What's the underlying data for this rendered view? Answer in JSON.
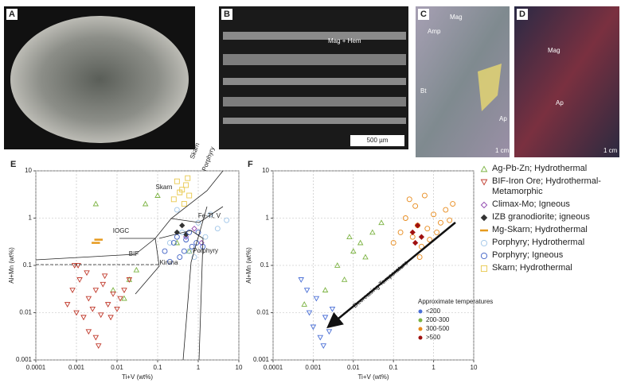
{
  "panels": [
    {
      "label": "A"
    },
    {
      "label": "B",
      "annotations": [
        "Mag + Hem",
        "500 µm"
      ]
    },
    {
      "label": "C",
      "annotations": [
        "Mag",
        "Amp",
        "Bt",
        "Ap",
        "1 cm"
      ]
    },
    {
      "label": "D",
      "annotations": [
        "Mag",
        "Ap",
        "1 cm"
      ]
    }
  ],
  "chart_data": [
    {
      "type": "scatter",
      "panel_label": "E",
      "xlabel": "Ti+V (wt%)",
      "ylabel": "Al+Mn (wt%)",
      "log": true,
      "grid": true,
      "xlim": [
        0.0001,
        10
      ],
      "ylim": [
        0.001,
        10
      ],
      "xticks": [
        0.0001,
        0.001,
        0.01,
        0.1,
        1,
        10
      ],
      "yticks": [
        0.001,
        0.01,
        0.1,
        1,
        10
      ],
      "annotations": [
        "Skarn",
        "Porphyry",
        "Fe-Ti, V",
        "IOGC",
        "BIF",
        "Kiruna",
        "Porphyry",
        "Skarn"
      ],
      "series": [
        {
          "name": "Ag-Pb-Zn; Hydrothermal",
          "marker": "triangle-up",
          "color": "#7cb342",
          "filled": false,
          "x": [
            0.003,
            0.05,
            0.015,
            0.02,
            0.3,
            0.1,
            0.03,
            0.008,
            0.6
          ],
          "values": [
            2,
            2,
            0.02,
            0.05,
            0.3,
            3,
            0.08,
            0.03,
            0.2
          ]
        },
        {
          "name": "BIF-Iron Ore; Hydrothermal-Metamorphic",
          "marker": "triangle-down",
          "color": "#c0392b",
          "filled": false,
          "x": [
            0.0006,
            0.0008,
            0.001,
            0.0012,
            0.0015,
            0.002,
            0.002,
            0.0025,
            0.003,
            0.003,
            0.004,
            0.005,
            0.006,
            0.008,
            0.01,
            0.012,
            0.0009,
            0.0018,
            0.0035,
            0.0045,
            0.007,
            0.015,
            0.02,
            0.0011
          ],
          "values": [
            0.015,
            0.03,
            0.01,
            0.05,
            0.008,
            0.02,
            0.004,
            0.012,
            0.03,
            0.003,
            0.009,
            0.06,
            0.015,
            0.025,
            0.012,
            0.02,
            0.1,
            0.07,
            0.002,
            0.04,
            0.008,
            0.03,
            0.05,
            0.1
          ]
        },
        {
          "name": "Climax-Mo; Igneous",
          "marker": "diamond",
          "color": "#8e44ad",
          "filled": false,
          "x": [
            0.5,
            0.8,
            1.2
          ],
          "values": [
            0.4,
            0.6,
            0.3
          ]
        },
        {
          "name": "IZB granodiorite; igneous",
          "marker": "diamond",
          "color": "#333333",
          "filled": true,
          "x": [
            0.3,
            0.4,
            0.5
          ],
          "values": [
            0.5,
            0.7,
            0.45
          ]
        },
        {
          "name": "Mg-Skarn; Hydrothermal",
          "marker": "dash",
          "color": "#e69a1f",
          "filled": true,
          "x": [
            0.003,
            0.0035
          ],
          "values": [
            0.3,
            0.35
          ]
        },
        {
          "name": "Porphyry; Hydrothermal",
          "marker": "circle",
          "color": "#9fc5e8",
          "filled": false,
          "x": [
            0.2,
            0.4,
            0.6,
            1,
            2,
            3,
            5,
            0.3,
            0.8,
            1.5
          ],
          "values": [
            0.3,
            0.5,
            0.2,
            0.8,
            1.2,
            0.6,
            0.9,
            1.5,
            0.15,
            0.4
          ]
        },
        {
          "name": "Porphyry; Igneous",
          "marker": "circle",
          "color": "#3d5fc4",
          "filled": false,
          "x": [
            0.15,
            0.25,
            0.35,
            0.5,
            0.7,
            1,
            0.3,
            0.45,
            0.6,
            0.2,
            0.9,
            1.3
          ],
          "values": [
            0.2,
            0.3,
            0.15,
            0.35,
            0.25,
            0.5,
            0.4,
            0.2,
            0.5,
            0.12,
            0.3,
            0.25
          ]
        },
        {
          "name": "Skarn; Hydrothermal",
          "marker": "square",
          "color": "#e8c84a",
          "filled": false,
          "x": [
            0.3,
            0.4,
            0.5,
            0.6,
            0.45,
            0.55,
            0.35,
            0.25
          ],
          "values": [
            6,
            4,
            5,
            3,
            2,
            7,
            3.5,
            2.5
          ]
        }
      ]
    },
    {
      "type": "scatter",
      "panel_label": "F",
      "xlabel": "Ti+V (wt%)",
      "ylabel": "Al+Mn (wt%)",
      "log": true,
      "grid": true,
      "xlim": [
        0.0001,
        10
      ],
      "ylim": [
        0.001,
        10
      ],
      "xticks": [
        0.0001,
        0.001,
        0.01,
        0.1,
        1,
        10
      ],
      "yticks": [
        0.001,
        0.01,
        0.1,
        1,
        10
      ],
      "legend_title": "Approximate temperatures",
      "annotations": [
        "Decreasing Temperature"
      ],
      "series": [
        {
          "name": "<200",
          "marker": "triangle-down",
          "color": "#4a6fd6",
          "filled": false,
          "x": [
            0.0005,
            0.0008,
            0.001,
            0.0012,
            0.0015,
            0.002,
            0.0025,
            0.003,
            0.0007,
            0.0018
          ],
          "values": [
            0.05,
            0.01,
            0.005,
            0.02,
            0.003,
            0.008,
            0.004,
            0.012,
            0.03,
            0.002
          ]
        },
        {
          "name": "200-300",
          "marker": "triangle-up",
          "color": "#7cb342",
          "filled": false,
          "x": [
            0.0006,
            0.002,
            0.004,
            0.006,
            0.01,
            0.015,
            0.02,
            0.03,
            0.008,
            0.05
          ],
          "values": [
            0.015,
            0.03,
            0.1,
            0.05,
            0.2,
            0.3,
            0.15,
            0.5,
            0.4,
            0.8
          ]
        },
        {
          "name": "300-500",
          "marker": "circle",
          "color": "#e88a1a",
          "filled": false,
          "x": [
            0.1,
            0.15,
            0.2,
            0.3,
            0.4,
            0.5,
            0.7,
            1,
            1.5,
            2,
            3,
            0.25,
            0.6,
            0.8,
            1.2,
            0.35,
            0.45,
            2.5
          ],
          "values": [
            0.3,
            0.5,
            1,
            0.4,
            0.7,
            0.25,
            0.6,
            1.2,
            0.8,
            1.5,
            2,
            2.5,
            3,
            0.35,
            0.5,
            1.8,
            0.15,
            0.9
          ]
        },
        {
          "name": ">500",
          "marker": "diamond",
          "color": "#a01010",
          "filled": true,
          "x": [
            0.3,
            0.4,
            0.5,
            0.35
          ],
          "values": [
            0.5,
            0.7,
            0.4,
            0.3
          ]
        }
      ]
    }
  ]
}
